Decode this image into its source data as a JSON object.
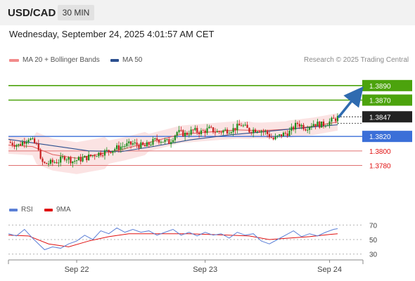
{
  "header": {
    "symbol": "USD/CAD",
    "timeframe": "30 MIN"
  },
  "datetime": "Wednesday, September 24, 2025 4:01:57 AM CET",
  "legend": {
    "bollinger": {
      "label": "MA 20 + Bollinger Bands",
      "color": "#f28b8b"
    },
    "ma50": {
      "label": "MA 50",
      "color": "#2b4f8f"
    }
  },
  "research": "Research © 2025 Trading Central",
  "rsi_legend": {
    "rsi": {
      "label": "RSI",
      "color": "#5b7fd6"
    },
    "ma9": {
      "label": "9MA",
      "color": "#e01010"
    }
  },
  "colors": {
    "up": "#1a8c1a",
    "down": "#c81e1e",
    "bullish_target": "#4ca30d",
    "pivot": "#3b6fd8",
    "support": "#e07070",
    "arrow": "#2f6bb0"
  },
  "chart_data": {
    "type": "candlestick",
    "ylim": [
      1.3735,
      1.3915
    ],
    "x_axis_labels": [
      "Sep 22",
      "Sep 23",
      "Sep 24"
    ],
    "last_price": 1.3847,
    "last_price_label": "1.3847",
    "levels": [
      {
        "value": 1.389,
        "label": "1.3890",
        "kind": "resistance"
      },
      {
        "value": 1.387,
        "label": "1.3870",
        "kind": "resistance"
      },
      {
        "value": 1.382,
        "label": "1.3820",
        "kind": "pivot"
      },
      {
        "value": 1.38,
        "label": "1.3800",
        "kind": "support"
      },
      {
        "value": 1.378,
        "label": "1.3780",
        "kind": "support"
      }
    ],
    "arrow": {
      "from": 1.3847,
      "to": 1.389,
      "direction": "up"
    },
    "close_path": [
      [
        0,
        1.3812
      ],
      [
        5,
        1.3808
      ],
      [
        10,
        1.3818
      ],
      [
        15,
        1.3805
      ],
      [
        16,
        1.3786
      ],
      [
        18,
        1.3782
      ],
      [
        25,
        1.3786
      ],
      [
        28,
        1.3792
      ],
      [
        32,
        1.3786
      ],
      [
        38,
        1.379
      ],
      [
        44,
        1.3796
      ],
      [
        50,
        1.38
      ],
      [
        56,
        1.3806
      ],
      [
        62,
        1.381
      ],
      [
        68,
        1.3806
      ],
      [
        74,
        1.3816
      ],
      [
        80,
        1.3812
      ],
      [
        84,
        1.3826
      ],
      [
        88,
        1.3823
      ],
      [
        92,
        1.3828
      ],
      [
        96,
        1.3826
      ],
      [
        100,
        1.383
      ],
      [
        104,
        1.3826
      ],
      [
        108,
        1.3828
      ],
      [
        112,
        1.383
      ],
      [
        116,
        1.3836
      ],
      [
        120,
        1.3828
      ],
      [
        124,
        1.383
      ],
      [
        128,
        1.3826
      ],
      [
        132,
        1.3816
      ],
      [
        136,
        1.3822
      ],
      [
        140,
        1.3826
      ],
      [
        144,
        1.3838
      ],
      [
        148,
        1.3832
      ],
      [
        152,
        1.3838
      ],
      [
        156,
        1.3836
      ],
      [
        160,
        1.384
      ],
      [
        164,
        1.3846
      ]
    ],
    "ma50_path": [
      [
        0,
        1.3816
      ],
      [
        20,
        1.3808
      ],
      [
        40,
        1.38
      ],
      [
        56,
        1.3799
      ],
      [
        72,
        1.3806
      ],
      [
        90,
        1.3815
      ],
      [
        110,
        1.3822
      ],
      [
        126,
        1.3826
      ],
      [
        140,
        1.383
      ],
      [
        152,
        1.3833
      ],
      [
        164,
        1.3836
      ]
    ],
    "ma20_path": [
      [
        0,
        1.3808
      ],
      [
        12,
        1.3806
      ],
      [
        22,
        1.3795
      ],
      [
        34,
        1.379
      ],
      [
        46,
        1.3796
      ],
      [
        58,
        1.3803
      ],
      [
        72,
        1.3813
      ],
      [
        86,
        1.3823
      ],
      [
        100,
        1.3826
      ],
      [
        114,
        1.3829
      ],
      [
        126,
        1.3828
      ],
      [
        140,
        1.383
      ],
      [
        152,
        1.3834
      ],
      [
        164,
        1.384
      ]
    ],
    "rsi": {
      "ticks": [
        70,
        50,
        30
      ],
      "ylim": [
        22,
        78
      ],
      "rsi_path": [
        [
          0,
          58
        ],
        [
          4,
          55
        ],
        [
          8,
          64
        ],
        [
          12,
          52
        ],
        [
          15,
          44
        ],
        [
          18,
          36
        ],
        [
          22,
          40
        ],
        [
          26,
          38
        ],
        [
          30,
          44
        ],
        [
          34,
          48
        ],
        [
          38,
          56
        ],
        [
          42,
          50
        ],
        [
          46,
          62
        ],
        [
          50,
          58
        ],
        [
          54,
          66
        ],
        [
          58,
          60
        ],
        [
          62,
          64
        ],
        [
          66,
          60
        ],
        [
          70,
          62
        ],
        [
          74,
          56
        ],
        [
          78,
          60
        ],
        [
          82,
          64
        ],
        [
          86,
          56
        ],
        [
          90,
          60
        ],
        [
          94,
          55
        ],
        [
          98,
          60
        ],
        [
          102,
          56
        ],
        [
          106,
          58
        ],
        [
          110,
          52
        ],
        [
          114,
          60
        ],
        [
          118,
          56
        ],
        [
          122,
          58
        ],
        [
          126,
          48
        ],
        [
          130,
          44
        ],
        [
          134,
          50
        ],
        [
          138,
          56
        ],
        [
          142,
          62
        ],
        [
          146,
          54
        ],
        [
          150,
          58
        ],
        [
          154,
          55
        ],
        [
          158,
          60
        ],
        [
          162,
          64
        ],
        [
          164,
          65
        ]
      ],
      "ma9_path": [
        [
          0,
          56
        ],
        [
          10,
          55
        ],
        [
          20,
          44
        ],
        [
          30,
          40
        ],
        [
          40,
          48
        ],
        [
          50,
          54
        ],
        [
          60,
          58
        ],
        [
          70,
          58
        ],
        [
          80,
          58
        ],
        [
          90,
          58
        ],
        [
          100,
          57
        ],
        [
          110,
          56
        ],
        [
          120,
          55
        ],
        [
          130,
          50
        ],
        [
          140,
          52
        ],
        [
          150,
          54
        ],
        [
          160,
          57
        ],
        [
          164,
          58
        ]
      ]
    }
  }
}
